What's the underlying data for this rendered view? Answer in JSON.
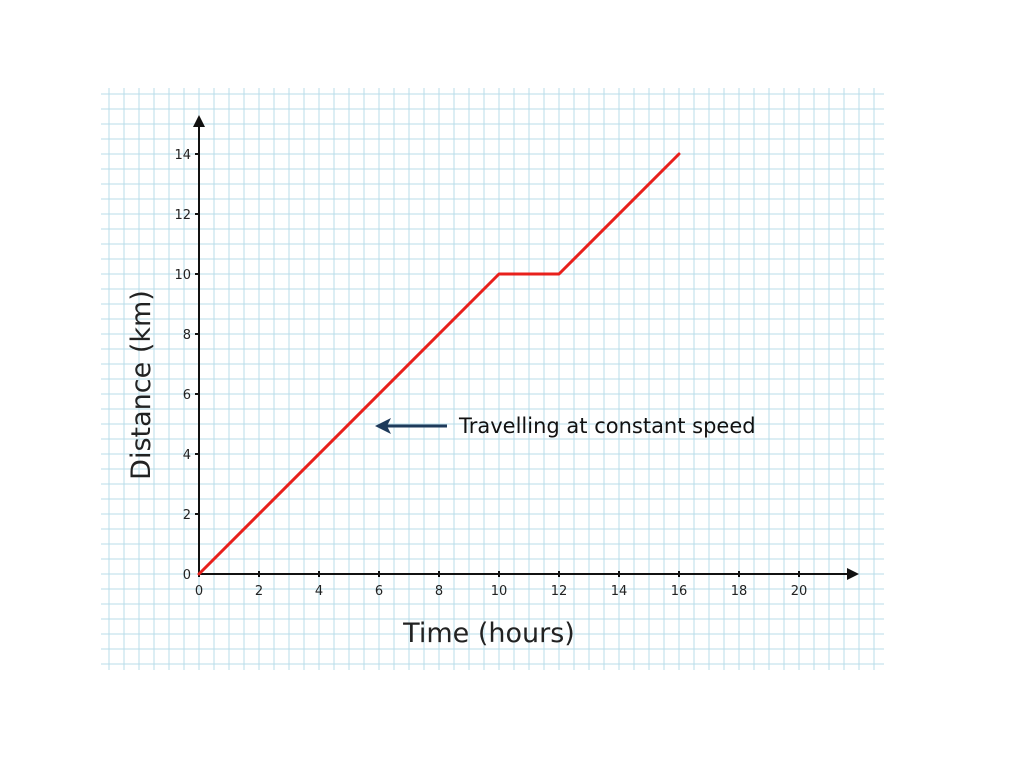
{
  "chart_data": {
    "type": "line",
    "title": "",
    "xlabel": "Time (hours)",
    "ylabel": "Distance (km)",
    "xlim": [
      0,
      21
    ],
    "ylim": [
      0,
      14.5
    ],
    "x_ticks": [
      0,
      2,
      4,
      6,
      8,
      10,
      12,
      14,
      16,
      18,
      20
    ],
    "y_ticks": [
      0,
      2,
      4,
      6,
      8,
      10,
      12,
      14
    ],
    "grid": true,
    "series": [
      {
        "color": "#e8201c",
        "points": [
          [
            0,
            0
          ],
          [
            10,
            10
          ],
          [
            12,
            10
          ],
          [
            16,
            14
          ]
        ]
      }
    ],
    "annotations": [
      {
        "text": "Travelling at constant speed",
        "arrow_points_to": [
          6,
          5
        ]
      }
    ],
    "colors": {
      "grid": "#b9dcea",
      "axis": "#111111",
      "arrow": "#1f3a5a"
    }
  }
}
